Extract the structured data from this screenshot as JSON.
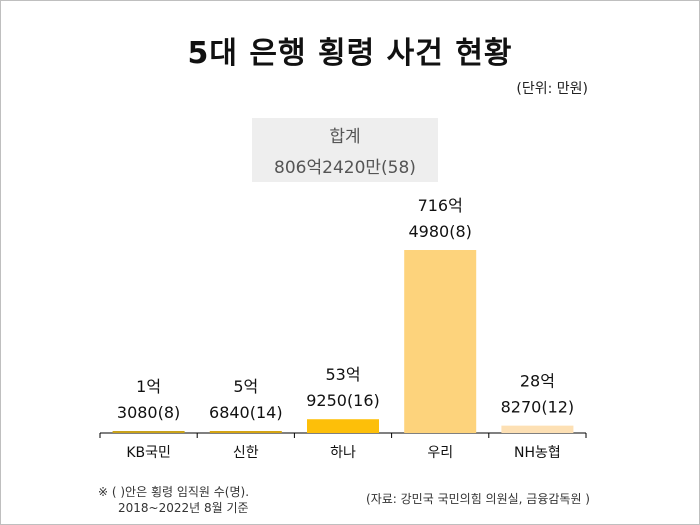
{
  "title": "5대 은행 횡령 사건 현황",
  "unit": "(단위: 만원)",
  "total": {
    "label": "합계",
    "value": "806억2420만(58)"
  },
  "notes": {
    "left_line1": "※ ( )안은 횡령 임직원 수(명).",
    "left_line2": "2018~2022년 8월 기준",
    "source": "(자료: 강민국 국민의힘 의원실, 금융감독원 )"
  },
  "chart_data": {
    "type": "bar",
    "title": "5대 은행 횡령 사건 현황",
    "ylabel": "",
    "xlabel": "",
    "unit": "만원",
    "categories": [
      "KB국민",
      "신한",
      "하나",
      "우리",
      "NH농협"
    ],
    "values": [
      13080,
      56840,
      539250,
      7164980,
      288270
    ],
    "people": [
      8,
      14,
      16,
      8,
      12
    ],
    "labels": [
      [
        "1억",
        "3080(8)"
      ],
      [
        "5억",
        "6840(14)"
      ],
      [
        "53억",
        "9250(16)"
      ],
      [
        "716억",
        "4980(8)"
      ],
      [
        "28억",
        "8270(12)"
      ]
    ],
    "colors": [
      "#c9a21a",
      "#d4a413",
      "#fdbf09",
      "#fdd37c",
      "#fde0b4"
    ],
    "grid": false,
    "legend": "none"
  }
}
